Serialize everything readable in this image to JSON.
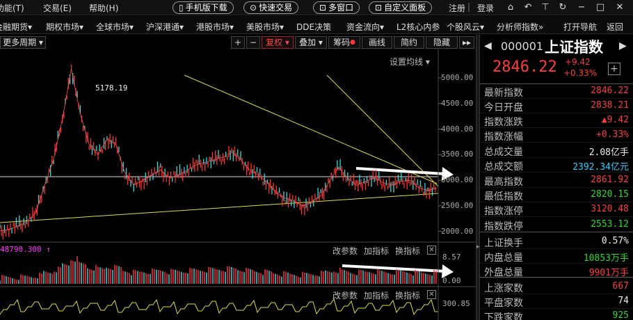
{
  "menubar": {
    "items": [
      "功能(T)",
      "交易(E)",
      "帮助(H)"
    ],
    "pills": [
      "手机版下载",
      "快速交易",
      "多窗口",
      "自定义面板"
    ],
    "links": [
      "注册",
      "登录"
    ]
  },
  "navbar": {
    "items": [
      "金融期货▾",
      "期权市场▾",
      "全球市场▾",
      "沪深港通▾",
      "港股市场▾",
      "美股市场▾",
      "DDE决策",
      "资金流向▾",
      "L2核心内参",
      "个股风云▾",
      "分析师指数»",
      "打开导航",
      "返回"
    ]
  },
  "toolbar": {
    "period": "更多周期 ▾",
    "plus": "+",
    "minus": "−",
    "fuquan": "复权 ▾",
    "diejia": "叠加 ▾",
    "chouma": "筹码",
    "huaxian": "画线",
    "jianyue": "简约",
    "yincang": "隐藏",
    "arrows": "▸▸",
    "setma": "设置均线 ▾"
  },
  "chart_data": {
    "type": "line",
    "title": "",
    "ylim": [
      1900,
      5300
    ],
    "y_ticks": [
      "5000.00",
      "4500.00",
      "4000.00",
      "3500.00",
      "3000.00",
      "2500.00",
      "2000.00"
    ],
    "peak_label": "5178.19",
    "series": [
      {
        "values": [
          2010,
          2040,
          2100,
          2200,
          2350,
          2900,
          3400,
          4200,
          5178,
          4300,
          3700,
          3500,
          3800,
          3700,
          3150,
          2900,
          3000,
          3100,
          3200,
          3050,
          3100,
          3200,
          3300,
          3350,
          3400,
          3450,
          3550,
          3400,
          3200,
          3100,
          2950,
          2750,
          2650,
          2580,
          2500,
          2580,
          2700,
          3000,
          3250,
          3050,
          2900,
          2980,
          3050,
          2950,
          2900,
          2980,
          3000,
          2850,
          2800,
          2846
        ]
      }
    ],
    "volume_label": "48790.300 ↑",
    "volume_ticks": [
      "8.57",
      "0.00"
    ],
    "sub_label": "300.85",
    "sub_tools": [
      "改参数",
      "加指标",
      "换指标"
    ]
  },
  "panel": {
    "code": "000001",
    "name": "上证指数",
    "price": "2846.22",
    "change": "+9.42",
    "change_pct": "+0.33%",
    "rows": [
      {
        "label": "最新指数",
        "value": "2846.22"
      },
      {
        "label": "今日开盘",
        "value": "2838.21"
      },
      {
        "label": "指数涨跌",
        "value": "▲9.42"
      },
      {
        "label": "指数涨幅",
        "value": "+0.33%"
      },
      {
        "label": "总成交量",
        "value": "2.08亿手"
      },
      {
        "label": "总成交额",
        "value": "2392.34亿元"
      },
      {
        "label": "最高指数",
        "value": "2861.92"
      },
      {
        "label": "最低指数",
        "value": "2820.15"
      },
      {
        "label": "指数涨停",
        "value": "3120.48"
      },
      {
        "label": "指数跌停",
        "value": "2553.12"
      },
      {
        "label": "上证换手",
        "value": "0.57%"
      },
      {
        "label": "内盘总量",
        "value": "10853万手"
      },
      {
        "label": "外盘总量",
        "value": "9901万手"
      },
      {
        "label": "上涨家数",
        "value": "667"
      },
      {
        "label": "平盘家数",
        "value": "74"
      },
      {
        "label": "下跌家数",
        "value": "925"
      }
    ],
    "colors": [
      "red",
      "red",
      "red",
      "red",
      "white",
      "cyan",
      "red",
      "green",
      "red",
      "green",
      "white",
      "green",
      "red",
      "red",
      "white",
      "green"
    ]
  }
}
